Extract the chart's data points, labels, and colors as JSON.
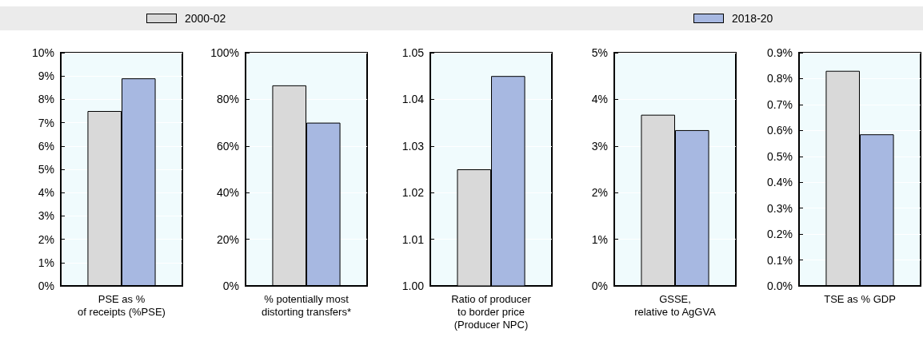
{
  "chart_data": [
    {
      "type": "bar",
      "categories": [
        "PSE as %\nof receipts (%PSE)"
      ],
      "legend": "top",
      "grid": "y",
      "series": [
        {
          "name": "2000-02",
          "color": "#d9d9d9",
          "values": [
            7.5
          ]
        },
        {
          "name": "2018-20",
          "color": "#a7b8e1",
          "values": [
            8.9
          ]
        }
      ],
      "ylim": [
        0,
        10
      ],
      "yticks": [
        {
          "value": 0,
          "label": "0%"
        },
        {
          "value": 1,
          "label": "1%"
        },
        {
          "value": 2,
          "label": "2%"
        },
        {
          "value": 3,
          "label": "3%"
        },
        {
          "value": 4,
          "label": "4%"
        },
        {
          "value": 5,
          "label": "5%"
        },
        {
          "value": 6,
          "label": "6%"
        },
        {
          "value": 7,
          "label": "7%"
        },
        {
          "value": 8,
          "label": "8%"
        },
        {
          "value": 9,
          "label": "9%"
        },
        {
          "value": 10,
          "label": "10%"
        }
      ]
    },
    {
      "type": "bar",
      "categories": [
        "% potentially most\ndistorting transfers*"
      ],
      "grid": "y",
      "series": [
        {
          "color": "#d9d9d9",
          "values": [
            86
          ]
        },
        {
          "color": "#a7b8e1",
          "values": [
            70
          ]
        }
      ],
      "ylim": [
        0,
        100
      ],
      "yticks": [
        {
          "value": 0,
          "label": "0%"
        },
        {
          "value": 20,
          "label": "20%"
        },
        {
          "value": 40,
          "label": "40%"
        },
        {
          "value": 60,
          "label": "60%"
        },
        {
          "value": 80,
          "label": "80%"
        },
        {
          "value": 100,
          "label": "100%"
        }
      ]
    },
    {
      "type": "bar",
      "categories": [
        "Ratio of producer\nto border price\n(Producer NPC)"
      ],
      "grid": "y",
      "series": [
        {
          "color": "#d9d9d9",
          "values": [
            1.025
          ]
        },
        {
          "color": "#a7b8e1",
          "values": [
            1.045
          ]
        }
      ],
      "ylim": [
        1,
        1.05
      ],
      "yticks": [
        {
          "value": 1,
          "label": "1.00"
        },
        1.01,
        1.02,
        1.03,
        1.04,
        1.05
      ]
    },
    {
      "type": "bar",
      "categories": [
        "GSSE,\nrelative to AgGVA"
      ],
      "grid": "y",
      "series": [
        {
          "color": "#d9d9d9",
          "values": [
            3.67
          ]
        },
        {
          "color": "#a7b8e1",
          "values": [
            3.34
          ]
        }
      ],
      "ylim": [
        0,
        5
      ],
      "yticks": [
        {
          "value": 0,
          "label": "0%"
        },
        {
          "value": 1,
          "label": "1%"
        },
        {
          "value": 2,
          "label": "2%"
        },
        {
          "value": 3,
          "label": "3%"
        },
        {
          "value": 4,
          "label": "4%"
        },
        {
          "value": 5,
          "label": "5%"
        }
      ]
    },
    {
      "type": "bar",
      "categories": [
        "TSE as % GDP"
      ],
      "grid": "y",
      "series": [
        {
          "color": "#d9d9d9",
          "values": [
            0.83
          ]
        },
        {
          "color": "#a7b8e1",
          "values": [
            0.585
          ]
        }
      ],
      "ylim": [
        0,
        0.9
      ],
      "yticks": [
        {
          "value": 0,
          "label": "0.0%"
        },
        {
          "value": 0.1,
          "label": "0.1%"
        },
        {
          "value": 0.2,
          "label": "0.2%"
        },
        {
          "value": 0.3,
          "label": "0.3%"
        },
        {
          "value": 0.4,
          "label": "0.4%"
        },
        {
          "value": 0.5,
          "label": "0.5%"
        },
        {
          "value": 0.6,
          "label": "0.6%"
        },
        {
          "value": 0.7,
          "label": "0.7%"
        },
        {
          "value": 0.8,
          "label": "0.8%"
        },
        {
          "value": 0.9,
          "label": "0.9%"
        }
      ]
    }
  ]
}
